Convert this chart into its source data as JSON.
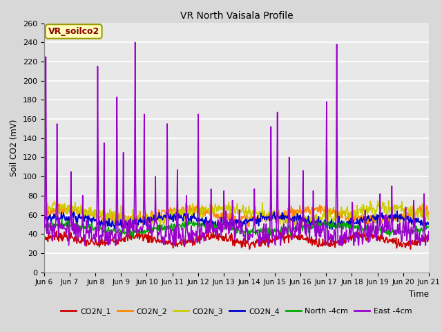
{
  "title": "VR North Vaisala Profile",
  "ylabel": "Soil CO2 (mV)",
  "xlabel": "Time",
  "annotation": "VR_soilco2",
  "ylim": [
    0,
    260
  ],
  "yticks": [
    0,
    20,
    40,
    60,
    80,
    100,
    120,
    140,
    160,
    180,
    200,
    220,
    240,
    260
  ],
  "xtick_labels": [
    "Jun 6",
    "Jun 7",
    "Jun 8",
    "Jun 9",
    "Jun 10",
    "Jun 11",
    "Jun 12",
    "Jun 13",
    "Jun 14",
    "Jun 15",
    "Jun 16",
    "Jun 17",
    "Jun 18",
    "Jun 19",
    "Jun 20",
    "Jun 21"
  ],
  "fig_bg_color": "#d8d8d8",
  "plot_bg_color": "#e8e8e8",
  "grid_color": "#ffffff",
  "legend_labels": [
    "CO2N_1",
    "CO2N_2",
    "CO2N_3",
    "CO2N_4",
    "North -4cm",
    "East -4cm"
  ],
  "line_colors": [
    "#cc0000",
    "#ff8800",
    "#cccc00",
    "#0000cc",
    "#00aa00",
    "#9900cc"
  ],
  "line_widths": [
    1.2,
    1.2,
    1.2,
    1.2,
    1.2,
    1.2
  ],
  "seed": 7,
  "n_points": 720,
  "spike_times": [
    0.08,
    0.5,
    1.05,
    1.5,
    2.1,
    2.35,
    2.85,
    3.1,
    3.55,
    3.9,
    4.35,
    4.8,
    5.2,
    5.55,
    6.0,
    6.5,
    7.0,
    7.35,
    8.2,
    8.85,
    9.1,
    9.55,
    10.1,
    10.5,
    11.0,
    11.4,
    12.0,
    12.5,
    13.1,
    13.55,
    14.1,
    14.4,
    14.8
  ],
  "spike_heights": [
    225,
    155,
    105,
    80,
    215,
    135,
    183,
    125,
    240,
    165,
    100,
    155,
    107,
    80,
    165,
    87,
    85,
    75,
    87,
    152,
    167,
    120,
    106,
    85,
    178,
    238,
    73,
    65,
    82,
    90,
    68,
    75,
    82
  ]
}
